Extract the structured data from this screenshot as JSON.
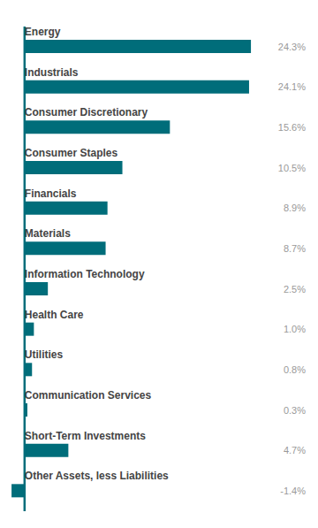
{
  "chart_data": {
    "type": "bar",
    "orientation": "horizontal",
    "categories": [
      "Energy",
      "Industrials",
      "Consumer Discretionary",
      "Consumer Staples",
      "Financials",
      "Materials",
      "Information Technology",
      "Health Care",
      "Utilities",
      "Communication Services",
      "Short-Term Investments",
      "Other Assets, less Liabilities"
    ],
    "values": [
      24.3,
      24.1,
      15.6,
      10.5,
      8.9,
      8.7,
      2.5,
      1.0,
      0.8,
      0.3,
      4.7,
      -1.4
    ],
    "value_labels": [
      "24.3%",
      "24.1%",
      "15.6%",
      "10.5%",
      "8.9%",
      "8.7%",
      "2.5%",
      "1.0%",
      "0.8%",
      "0.3%",
      "4.7%",
      "-1.4%"
    ],
    "data_labels": true,
    "color": "#006d7a",
    "xlim": [
      -1.5,
      26
    ]
  }
}
